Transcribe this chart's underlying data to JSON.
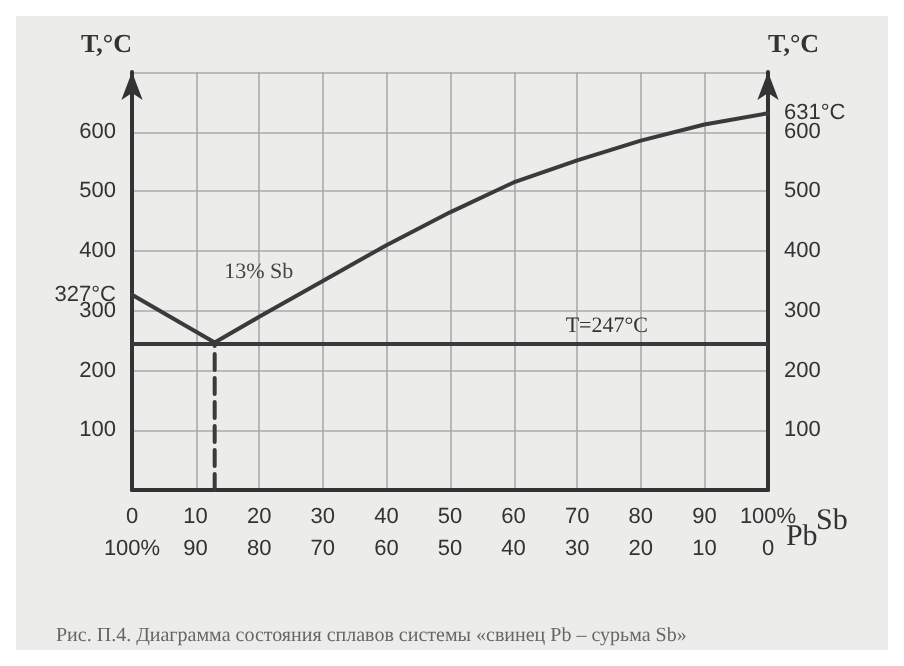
{
  "chart_data": {
    "type": "line",
    "xlabel": "Sb",
    "x2label": "Pb",
    "ylabel": "T,°C",
    "y2label": "T,°C",
    "series": [
      {
        "color": "#3a3a3a",
        "x": [
          0,
          13,
          20,
          30,
          40,
          50,
          60,
          70,
          80,
          90,
          100
        ],
        "values": [
          327,
          247,
          290,
          350,
          410,
          465,
          515,
          552,
          585,
          612,
          631
        ]
      },
      {
        "color": "#3a3a3a",
        "line_style": "dashed",
        "x": [
          13,
          13
        ],
        "values": [
          0,
          247
        ]
      }
    ],
    "ref_lines": [
      {
        "axis": "y",
        "value": 247,
        "label": "T=247°C",
        "color": "#3a3a3a"
      }
    ],
    "annotations": [
      {
        "text": "13% Sb",
        "x": 13,
        "y": 247
      },
      "Рис. П.4. Диаграмма состояния сплавов системы «свинец Pb – сурьма Sb»"
    ],
    "xlim": [
      0,
      100
    ],
    "xticks": [
      0,
      10,
      20,
      30,
      40,
      50,
      60,
      70,
      80,
      90,
      {
        "value": 100,
        "label": "100%"
      }
    ],
    "x2lim": [
      100,
      0
    ],
    "x2ticks": [
      {
        "value": 100,
        "label": "100%"
      },
      90,
      80,
      70,
      60,
      50,
      40,
      30,
      20,
      10,
      0
    ],
    "ylim": [
      0,
      700
    ],
    "yticks": [
      {
        "value": 0,
        "label": null
      },
      100,
      200,
      300,
      {
        "value": 327,
        "label": "327°C"
      },
      400,
      500,
      600,
      {
        "value": 700,
        "label": null
      }
    ],
    "y2lim": [
      0,
      700
    ],
    "y2ticks": [
      {
        "value": 0,
        "label": null
      },
      100,
      200,
      300,
      400,
      500,
      600,
      {
        "value": 631,
        "label": "631°C"
      },
      {
        "value": 700,
        "label": null
      }
    ],
    "grid": true,
    "marker": "none",
    "line_style": "solid"
  }
}
